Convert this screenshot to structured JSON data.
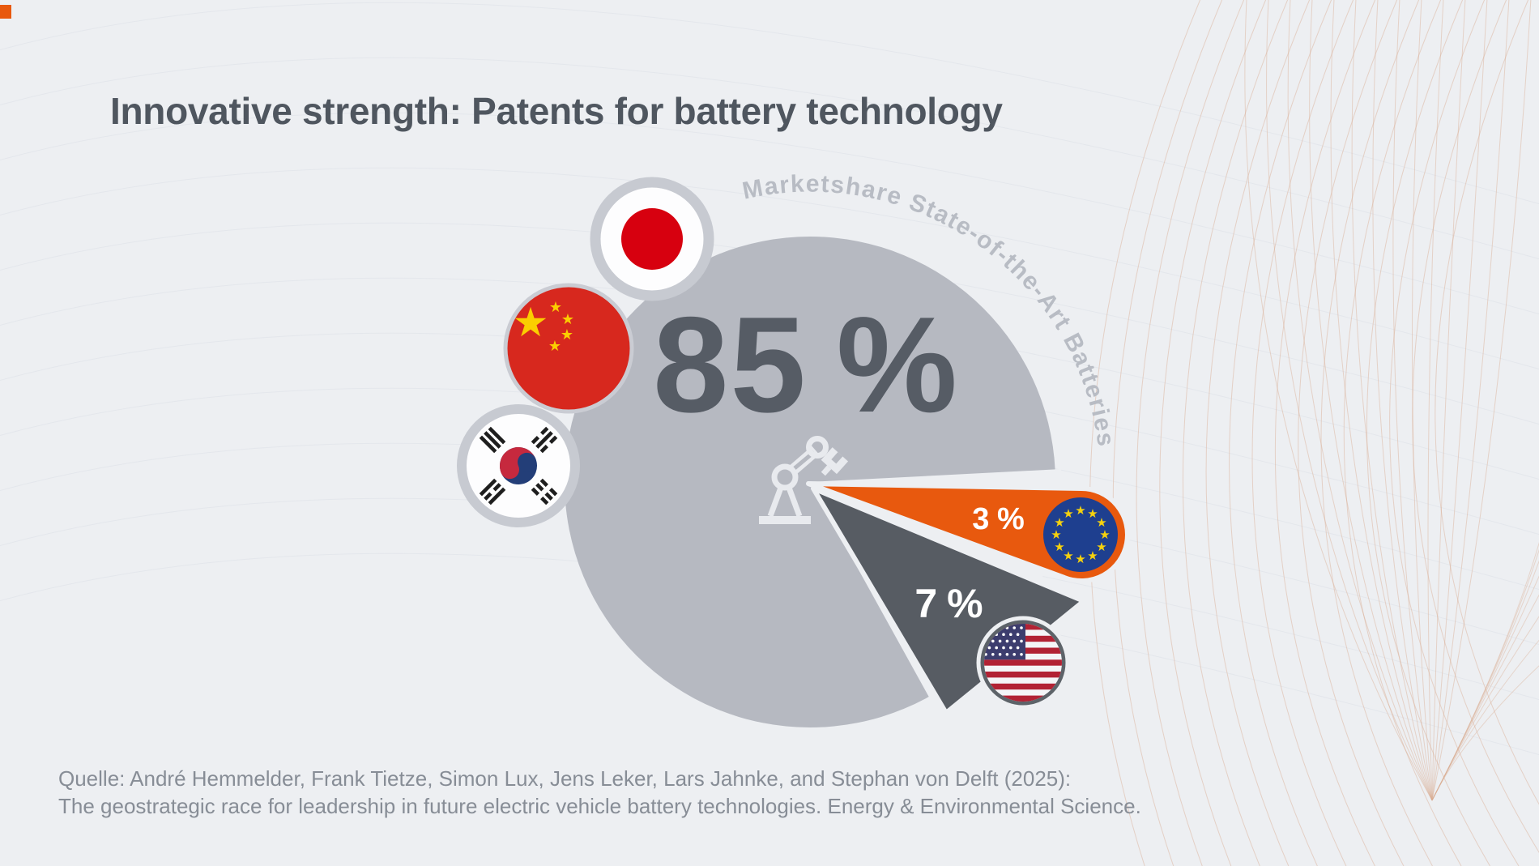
{
  "page": {
    "background": "#edeff2"
  },
  "logo": {
    "color": "#e8590e"
  },
  "header": {
    "title": "Innovative strength: Patents for battery technology"
  },
  "chart_data": {
    "type": "pie",
    "title": "Marketshare State-of-the-Art Batteries",
    "unit": "percent",
    "legend_position": "flags-around-circle",
    "center_icon": "robot-arm",
    "slices": [
      {
        "region": "Japan, China, South Korea",
        "value": 85,
        "display": "85 %",
        "color": "#b6b9c1",
        "flags": [
          "japan",
          "china",
          "south-korea"
        ]
      },
      {
        "region": "European Union",
        "value": 3,
        "display": "3 %",
        "color": "#e8590e",
        "flags": [
          "eu"
        ]
      },
      {
        "region": "United States",
        "value": 7,
        "display": "7 %",
        "color": "#575c63",
        "flags": [
          "usa"
        ]
      }
    ]
  },
  "source": {
    "line1": "Quelle: André Hemmelder, Frank Tietze, Simon Lux, Jens Leker, Lars Jahnke, and Stephan von Delft (2025):",
    "line2": "The geostrategic race for leadership in future electric vehicle battery technologies. Energy & Environmental Science."
  },
  "colors": {
    "background": "#edeff2",
    "pie_main": "#b6b9c1",
    "accent_orange": "#e8590e",
    "dark_gray": "#575c63",
    "title_text": "#4f565f",
    "muted_text": "#878d96",
    "curved_text": "#b8bcc4"
  }
}
